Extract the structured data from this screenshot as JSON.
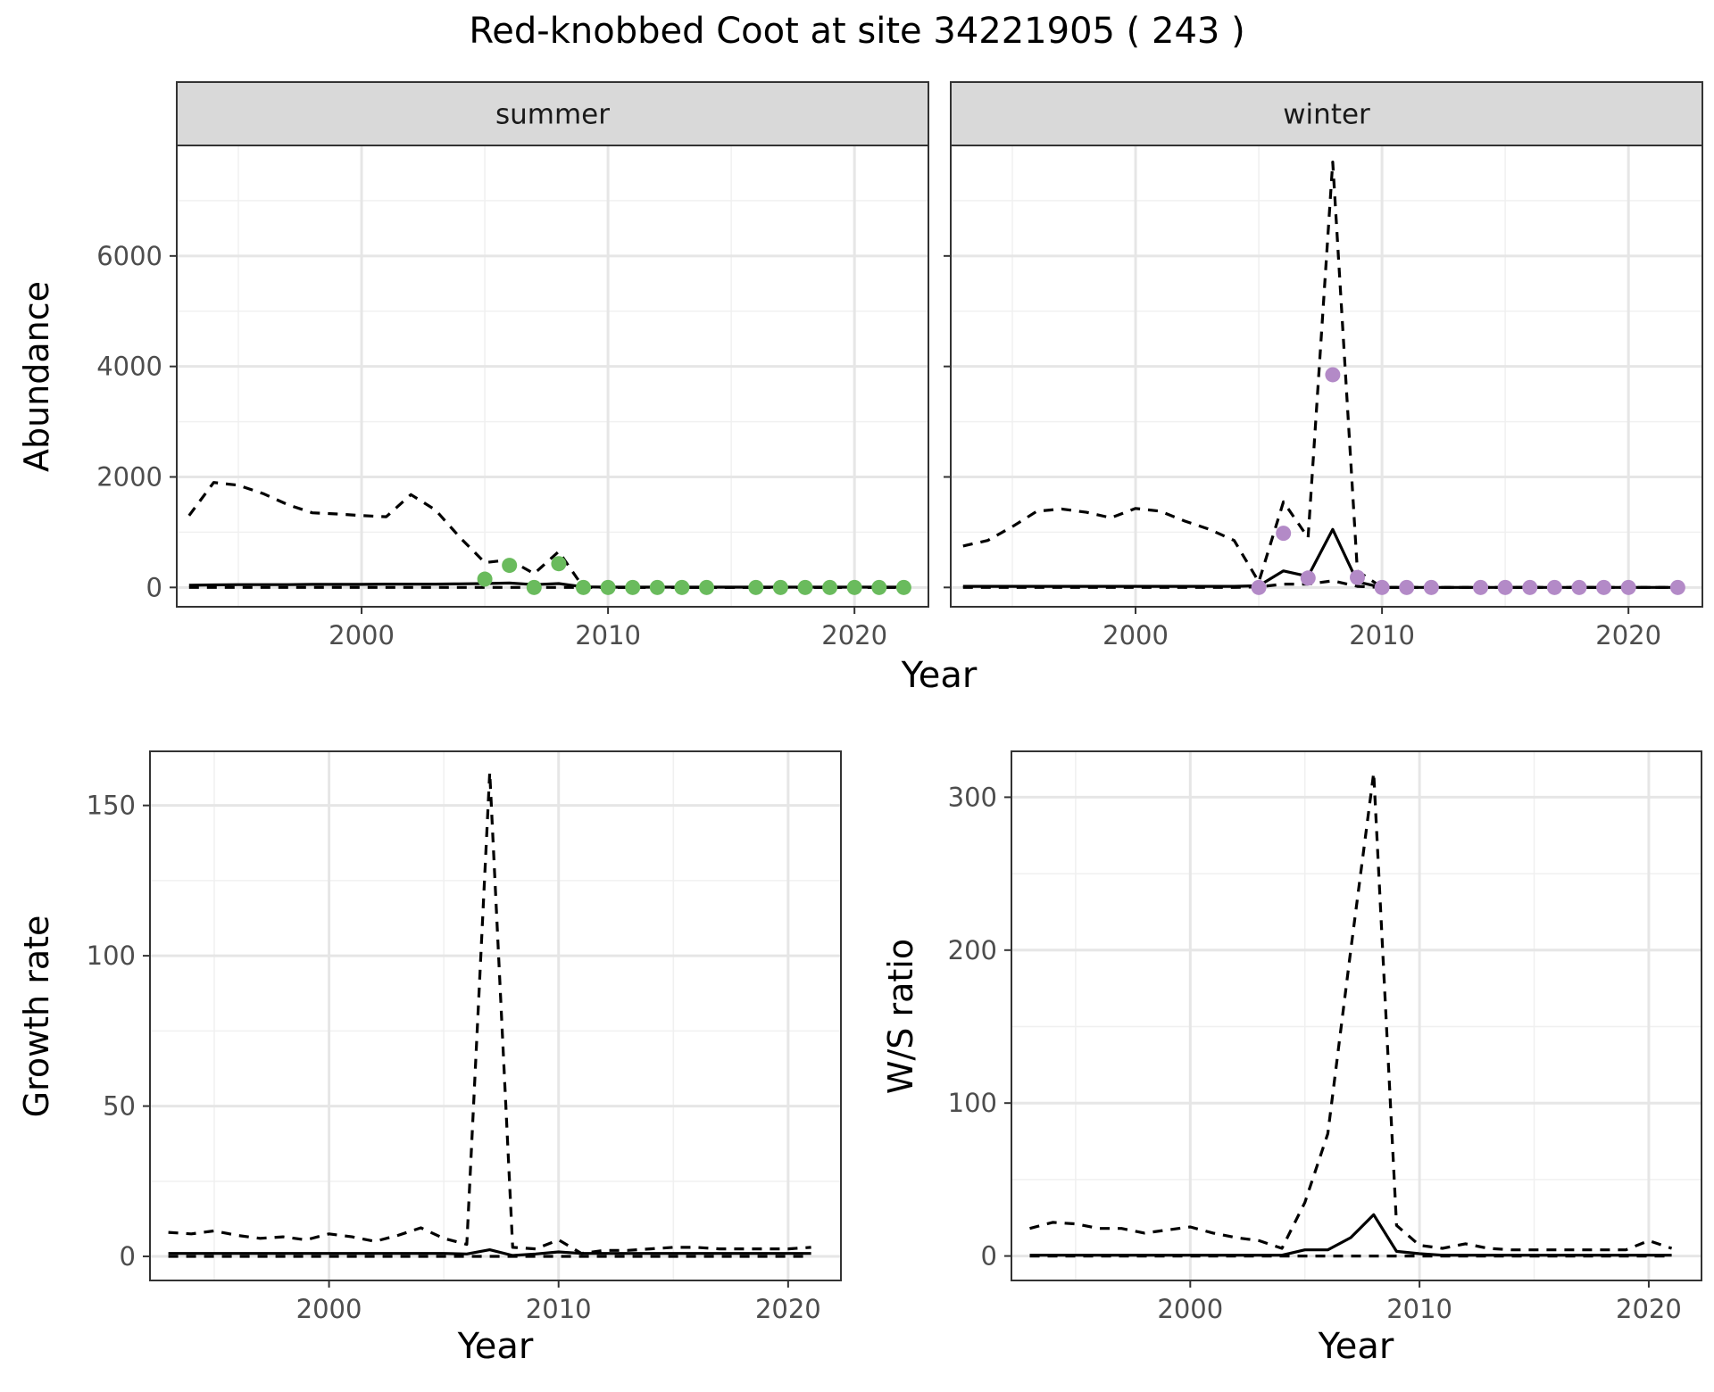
{
  "title": "Red-knobbed Coot at site 34221905 ( 243 )",
  "chart_data": [
    {
      "type": "line",
      "panel": "summer",
      "xlabel": "Year",
      "ylabel": "Abundance",
      "xlim": [
        1992.5,
        2023.0
      ],
      "ylim": [
        -350,
        8000
      ],
      "x_ticks": [
        2000,
        2010,
        2020
      ],
      "y_ticks": [
        0,
        2000,
        4000,
        6000
      ],
      "grid": true,
      "point_color": "#6abb5d",
      "series": [
        {
          "line": "dashed",
          "x": [
            1993,
            1994,
            1995,
            1996,
            1997,
            1998,
            1999,
            2000,
            2001,
            2002,
            2003,
            2004,
            2005,
            2006,
            2007,
            2008,
            2009,
            2010,
            2011,
            2012,
            2013,
            2014,
            2015,
            2016,
            2017,
            2018,
            2019,
            2020,
            2021,
            2022
          ],
          "values": [
            1300,
            1900,
            1850,
            1700,
            1500,
            1350,
            1330,
            1300,
            1280,
            1680,
            1400,
            900,
            450,
            500,
            250,
            650,
            0,
            0,
            0,
            0,
            0,
            0,
            0,
            0,
            0,
            0,
            0,
            0,
            0,
            0
          ]
        },
        {
          "line": "solid",
          "x": [
            1993,
            1994,
            1995,
            1996,
            1997,
            1998,
            1999,
            2000,
            2001,
            2002,
            2003,
            2004,
            2005,
            2006,
            2007,
            2008,
            2009,
            2010,
            2011,
            2012,
            2013,
            2014,
            2015,
            2016,
            2017,
            2018,
            2019,
            2020,
            2021,
            2022
          ],
          "values": [
            40,
            45,
            50,
            50,
            50,
            55,
            55,
            55,
            60,
            60,
            60,
            65,
            70,
            80,
            50,
            70,
            10,
            5,
            5,
            5,
            5,
            5,
            5,
            5,
            5,
            5,
            5,
            5,
            5,
            5
          ]
        },
        {
          "line": "dashed",
          "x": [
            1993,
            2022
          ],
          "values": [
            0,
            0
          ]
        },
        {
          "line": "points",
          "x": [
            2005,
            2006,
            2007,
            2008,
            2009,
            2010,
            2011,
            2012,
            2013,
            2014,
            2016,
            2017,
            2018,
            2019,
            2020,
            2021,
            2022
          ],
          "values": [
            150,
            400,
            0,
            430,
            0,
            0,
            0,
            0,
            0,
            0,
            0,
            0,
            0,
            0,
            0,
            0,
            0
          ]
        }
      ]
    },
    {
      "type": "line",
      "panel": "winter",
      "xlabel": "Year",
      "ylabel": "Abundance",
      "xlim": [
        1992.5,
        2023.0
      ],
      "ylim": [
        -350,
        8000
      ],
      "x_ticks": [
        2000,
        2010,
        2020
      ],
      "y_ticks": [
        0,
        2000,
        4000,
        6000
      ],
      "grid": true,
      "point_color": "#b38ac7",
      "series": [
        {
          "line": "dashed",
          "x": [
            1993,
            1994,
            1995,
            1996,
            1997,
            1998,
            1999,
            2000,
            2001,
            2002,
            2003,
            2004,
            2005,
            2006,
            2007,
            2008,
            2009,
            2010,
            2011,
            2012,
            2013,
            2014,
            2015,
            2016,
            2017,
            2018,
            2019,
            2020,
            2021,
            2022
          ],
          "values": [
            750,
            850,
            1100,
            1380,
            1420,
            1360,
            1260,
            1430,
            1380,
            1200,
            1050,
            850,
            100,
            1550,
            900,
            7700,
            300,
            0,
            0,
            0,
            0,
            0,
            0,
            0,
            0,
            0,
            0,
            0,
            0,
            0
          ]
        },
        {
          "line": "solid",
          "x": [
            1993,
            1994,
            1995,
            1996,
            1997,
            1998,
            1999,
            2000,
            2001,
            2002,
            2003,
            2004,
            2005,
            2006,
            2007,
            2008,
            2009,
            2010,
            2011,
            2012,
            2013,
            2014,
            2015,
            2016,
            2017,
            2018,
            2019,
            2020,
            2021,
            2022
          ],
          "values": [
            20,
            20,
            20,
            20,
            20,
            20,
            20,
            20,
            20,
            20,
            20,
            20,
            30,
            300,
            200,
            1050,
            100,
            0,
            0,
            0,
            0,
            0,
            0,
            0,
            0,
            0,
            0,
            0,
            0,
            0
          ]
        },
        {
          "line": "dashed",
          "x": [
            1993,
            2004,
            2005,
            2006,
            2007,
            2008,
            2009,
            2010,
            2022
          ],
          "values": [
            0,
            0,
            10,
            60,
            60,
            120,
            20,
            0,
            0
          ]
        },
        {
          "line": "points",
          "x": [
            2005,
            2006,
            2007,
            2008,
            2009,
            2010,
            2011,
            2012,
            2014,
            2015,
            2016,
            2017,
            2018,
            2019,
            2020,
            2022
          ],
          "values": [
            0,
            980,
            170,
            3850,
            180,
            0,
            0,
            0,
            0,
            0,
            0,
            0,
            0,
            0,
            0,
            0
          ]
        }
      ]
    },
    {
      "type": "line",
      "panel": "growth",
      "xlabel": "Year",
      "ylabel": "Growth rate",
      "xlim": [
        1992.2,
        2022.3
      ],
      "ylim": [
        -8,
        168
      ],
      "x_ticks": [
        2000,
        2010,
        2020
      ],
      "y_ticks": [
        0,
        50,
        100,
        150
      ],
      "grid": true,
      "series": [
        {
          "line": "dashed",
          "x": [
            1993,
            1994,
            1995,
            1996,
            1997,
            1998,
            1999,
            2000,
            2001,
            2002,
            2003,
            2004,
            2005,
            2006,
            2007,
            2008,
            2009,
            2010,
            2011,
            2012,
            2013,
            2014,
            2015,
            2016,
            2017,
            2018,
            2019,
            2020,
            2021
          ],
          "values": [
            8,
            7.5,
            8.5,
            7,
            6,
            6.5,
            5.5,
            7.5,
            6.5,
            5,
            7,
            9.5,
            6,
            4,
            161,
            3,
            2.5,
            5.5,
            1,
            2,
            2,
            2.5,
            3,
            3,
            2.5,
            2.5,
            2.5,
            2.5,
            3
          ]
        },
        {
          "line": "solid",
          "x": [
            1993,
            1994,
            1995,
            1996,
            1997,
            1998,
            1999,
            2000,
            2001,
            2002,
            2003,
            2004,
            2005,
            2006,
            2007,
            2008,
            2009,
            2010,
            2011,
            2012,
            2013,
            2014,
            2015,
            2016,
            2017,
            2018,
            2019,
            2020,
            2021
          ],
          "values": [
            1,
            1,
            1,
            1,
            1,
            1,
            1,
            1,
            1,
            1,
            1,
            1,
            1,
            0.8,
            2.2,
            0.3,
            0.8,
            1.5,
            1,
            1,
            1,
            1,
            1,
            1,
            1,
            1,
            1,
            1,
            1
          ]
        },
        {
          "line": "dashed",
          "x": [
            1993,
            2021
          ],
          "values": [
            0,
            0
          ]
        }
      ]
    },
    {
      "type": "line",
      "panel": "ws",
      "xlabel": "Year",
      "ylabel": "W/S ratio",
      "xlim": [
        1992.2,
        2022.3
      ],
      "ylim": [
        -16,
        330
      ],
      "x_ticks": [
        2000,
        2010,
        2020
      ],
      "y_ticks": [
        0,
        100,
        200,
        300
      ],
      "grid": true,
      "series": [
        {
          "line": "dashed",
          "x": [
            1993,
            1994,
            1995,
            1996,
            1997,
            1998,
            1999,
            2000,
            2001,
            2002,
            2003,
            2004,
            2005,
            2006,
            2007,
            2008,
            2009,
            2010,
            2011,
            2012,
            2013,
            2014,
            2015,
            2016,
            2017,
            2018,
            2019,
            2020,
            2021
          ],
          "values": [
            18,
            22,
            21,
            18,
            18,
            15,
            17,
            19,
            15,
            12,
            10,
            5,
            35,
            80,
            200,
            316,
            20,
            7,
            5,
            8,
            5,
            4,
            4,
            4,
            4,
            4,
            4,
            10,
            5
          ]
        },
        {
          "line": "solid",
          "x": [
            1993,
            1994,
            1995,
            1996,
            1997,
            1998,
            1999,
            2000,
            2001,
            2002,
            2003,
            2004,
            2005,
            2006,
            2007,
            2008,
            2009,
            2010,
            2011,
            2012,
            2013,
            2014,
            2015,
            2016,
            2017,
            2018,
            2019,
            2020,
            2021
          ],
          "values": [
            0.5,
            0.5,
            0.5,
            0.5,
            0.5,
            0.5,
            0.5,
            0.5,
            0.5,
            0.5,
            0.5,
            0.5,
            4,
            4,
            12,
            27,
            3,
            1.5,
            0.5,
            0.5,
            0.5,
            0.5,
            0.5,
            0.5,
            0.5,
            0.5,
            0.5,
            0.5,
            0.5
          ]
        },
        {
          "line": "dashed",
          "x": [
            1993,
            2021
          ],
          "values": [
            0,
            0
          ]
        }
      ]
    }
  ]
}
